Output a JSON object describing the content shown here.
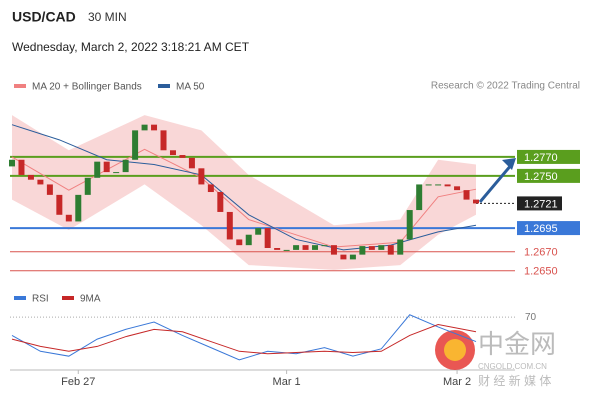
{
  "chart_data": [
    {
      "type": "candlestick",
      "title": "USD/CAD",
      "subtitle": "30 MIN",
      "date": "Wednesday, March 2, 2022 3:18:21 AM CET",
      "credit": "Research © 2022 Trading Central",
      "xlim": [
        0,
        49
      ],
      "xticks": [
        {
          "value": 7,
          "label": "Feb 27"
        },
        {
          "value": 29,
          "label": "Mar 1"
        },
        {
          "value": 47,
          "label": "Mar 2"
        }
      ],
      "ylim": [
        1.2635,
        1.283
      ],
      "open": [
        1.276,
        1.2767,
        1.2751,
        1.2746,
        1.2741,
        1.273,
        1.2709,
        1.2702,
        1.273,
        1.2748,
        1.2765,
        1.2754,
        1.2754,
        1.2767,
        1.2798,
        1.2804,
        1.2798,
        1.2777,
        1.2772,
        1.2769,
        1.2758,
        1.2741,
        1.2733,
        1.2712,
        1.2683,
        1.2677,
        1.2688,
        1.2695,
        1.2674,
        1.2672,
        1.2672,
        1.2677,
        1.2672,
        1.2677,
        1.2677,
        1.2667,
        1.2662,
        1.2667,
        1.2676,
        1.2672,
        1.2677,
        1.2667,
        1.2683,
        1.2714,
        1.2741,
        1.2741,
        1.2741,
        1.2739,
        1.2735,
        1.2725
      ],
      "close": [
        1.2767,
        1.2751,
        1.2746,
        1.2741,
        1.273,
        1.2709,
        1.2702,
        1.273,
        1.2748,
        1.2765,
        1.2754,
        1.2754,
        1.2767,
        1.2798,
        1.2804,
        1.2798,
        1.2777,
        1.2772,
        1.2769,
        1.2758,
        1.2741,
        1.2733,
        1.2712,
        1.2683,
        1.2677,
        1.2688,
        1.2695,
        1.2674,
        1.2672,
        1.2672,
        1.2677,
        1.2672,
        1.2677,
        1.2677,
        1.2667,
        1.2662,
        1.2667,
        1.2676,
        1.2672,
        1.2677,
        1.2667,
        1.2683,
        1.2714,
        1.2741,
        1.2741,
        1.2741,
        1.2739,
        1.2735,
        1.2725,
        1.2721
      ],
      "up_color": "#2e7d32",
      "down_color": "#c62828",
      "series": [
        {
          "name": "MA 20 + Bollinger Bands",
          "color": "#f08080",
          "x": [
            0,
            6,
            14,
            20,
            25,
            34,
            41,
            45,
            49
          ],
          "values": [
            1.277,
            1.2735,
            1.2778,
            1.2748,
            1.2704,
            1.2675,
            1.268,
            1.2728,
            1.2736
          ],
          "upper": [
            1.2814,
            1.2777,
            1.2814,
            1.2798,
            1.2751,
            1.2698,
            1.2704,
            1.2767,
            1.2762
          ],
          "lower": [
            1.2725,
            1.2693,
            1.2741,
            1.2698,
            1.2656,
            1.2651,
            1.2656,
            1.2688,
            1.2709
          ]
        },
        {
          "name": "MA 50",
          "color": "#2b5d9b",
          "x": [
            0,
            5,
            10,
            15,
            20,
            25,
            30,
            35,
            40,
            45,
            49
          ],
          "values": [
            1.2804,
            1.2788,
            1.2767,
            1.2762,
            1.2751,
            1.2709,
            1.2683,
            1.2672,
            1.2677,
            1.2691,
            1.2698
          ]
        }
      ],
      "levels": [
        {
          "value": 1.277,
          "label": "1.2770",
          "color": "#5a9e1e",
          "style": "box"
        },
        {
          "value": 1.275,
          "label": "1.2750",
          "color": "#5a9e1e",
          "style": "box"
        },
        {
          "value": 1.2721,
          "color": "#222222",
          "style": "current"
        },
        {
          "value": 1.2695,
          "color": "#3a78d8",
          "style": "box"
        },
        {
          "value": 1.267,
          "label": "1.2670",
          "color": "#d9534f",
          "style": "text"
        },
        {
          "value": 1.265,
          "label": "1.2650",
          "color": "#d9534f",
          "style": "text"
        }
      ],
      "watermark": {
        "name": "中金网",
        "url": "CNGOLD.COM.CN",
        "tagline": "财 经 新 媒 体"
      }
    },
    {
      "type": "line",
      "xlim": [
        0,
        49
      ],
      "ylim": [
        25,
        80
      ],
      "yticks": [
        70
      ],
      "x": [
        0,
        3,
        6,
        9,
        12,
        15,
        18,
        21,
        24,
        27,
        30,
        33,
        36,
        39,
        42,
        45,
        49
      ],
      "series": [
        {
          "name": "RSI",
          "color": "#3a78d8",
          "values": [
            55,
            42,
            38,
            52,
            60,
            66,
            55,
            45,
            35,
            42,
            40,
            45,
            38,
            44,
            72,
            62,
            50
          ]
        },
        {
          "name": "9MA",
          "color": "#c62828",
          "values": [
            52,
            46,
            42,
            46,
            54,
            60,
            58,
            50,
            42,
            40,
            41,
            42,
            41,
            42,
            55,
            64,
            58
          ]
        }
      ]
    }
  ]
}
